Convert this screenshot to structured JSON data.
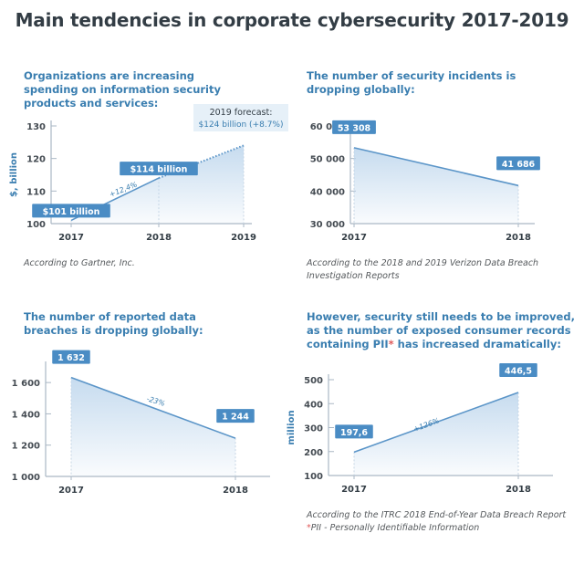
{
  "title": "Main tendencies in corporate cybersecurity 2017-2019",
  "colors": {
    "line": "#5b95c8",
    "fill_top": "#bcd5ec",
    "label_bg": "#4a8cc4",
    "axis": "#aab7c4",
    "title": "#3a7eb0",
    "forecast_bg": "#e6f0f8"
  },
  "chart_data": [
    {
      "type": "area",
      "title": "Organizations are increasing spending on information security products and services:",
      "ylabel": "$, billion",
      "ylim": [
        100,
        130
      ],
      "yticks": [
        100,
        110,
        120,
        130
      ],
      "ytick_labels": [
        "100",
        "110",
        "120",
        "130"
      ],
      "x": [
        "2017",
        "2018",
        "2019"
      ],
      "values": [
        101,
        114,
        124
      ],
      "forecast_from_index": 1,
      "point_labels": [
        "$101 billion",
        "$114 billion",
        ""
      ],
      "forecast_label_line1": "2019 forecast:",
      "forecast_label_line2": "$124 billion (+8.7%)",
      "change_label": "+12,4%",
      "source": "According to Gartner, Inc."
    },
    {
      "type": "area",
      "title": "The number of security incidents is dropping globally:",
      "ylabel": "",
      "ylim": [
        30000,
        60000
      ],
      "yticks": [
        30000,
        40000,
        50000,
        60000
      ],
      "ytick_labels": [
        "30 000",
        "40 000",
        "50 000",
        "60 000"
      ],
      "x": [
        "2017",
        "2018"
      ],
      "values": [
        53308,
        41686
      ],
      "point_labels": [
        "53 308",
        "41 686"
      ],
      "source": "According to the 2018 and 2019 Verizon Data Breach Investigation Reports"
    },
    {
      "type": "area",
      "title": "The number of reported data breaches is dropping globally:",
      "ylabel": "",
      "ylim": [
        1000,
        1700
      ],
      "yticks": [
        1000,
        1200,
        1400,
        1600
      ],
      "ytick_labels": [
        "1 000",
        "1 200",
        "1 400",
        "1 600"
      ],
      "x": [
        "2017",
        "2018"
      ],
      "values": [
        1632,
        1244
      ],
      "point_labels": [
        "1 632",
        "1 244"
      ],
      "change_label": "-23%",
      "source": ""
    },
    {
      "type": "area",
      "title_line1": "However, security still needs to be improved,",
      "title_line2": "as the number of exposed consumer records",
      "title_line3a": "containing PII",
      "title_line3b": "*",
      "title_line3c": " has increased dramatically:",
      "ylabel": "million",
      "ylim": [
        100,
        500
      ],
      "yticks": [
        100,
        200,
        300,
        400,
        500
      ],
      "ytick_labels": [
        "100",
        "200",
        "300",
        "400",
        "500"
      ],
      "x": [
        "2017",
        "2018"
      ],
      "values": [
        197.6,
        446.5
      ],
      "point_labels": [
        "197,6",
        "446,5"
      ],
      "change_label": "+126%",
      "source_line1": "According to the ITRC 2018 End-of-Year Data Breach Report",
      "source_line2_star": "*",
      "source_line2": "PII - Personally Identifiable Information"
    }
  ]
}
